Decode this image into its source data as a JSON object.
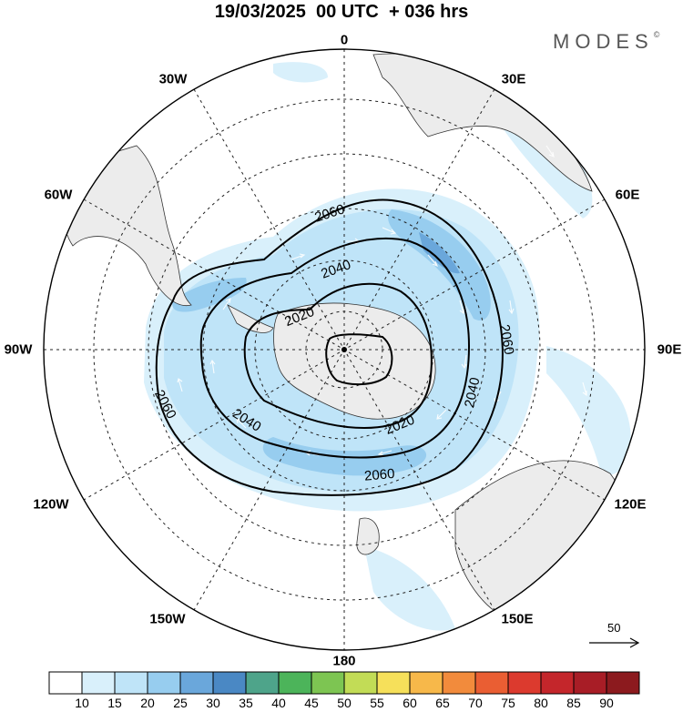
{
  "title": "19/03/2025  00 UTC  + 036 hrs",
  "brand": "MODES",
  "brand_mark": "©",
  "longitude_labels": {
    "lon_0": "0",
    "lon_30e": "30E",
    "lon_60e": "60E",
    "lon_90e": "90E",
    "lon_120e": "120E",
    "lon_150e": "150E",
    "lon_180": "180",
    "lon_150w": "150W",
    "lon_120w": "120W",
    "lon_90w": "90W",
    "lon_60w": "60W",
    "lon_30w": "30W"
  },
  "contour_labels": [
    "2060",
    "2040",
    "2020",
    "2060",
    "2040",
    "2060",
    "2040",
    "2020",
    "2060"
  ],
  "colorbar": {
    "labels": [
      "10",
      "15",
      "20",
      "25",
      "30",
      "35",
      "40",
      "45",
      "50",
      "55",
      "60",
      "65",
      "70",
      "75",
      "80",
      "85",
      "90"
    ],
    "colors": [
      "#ffffff",
      "#d9f0fb",
      "#bfe4f8",
      "#97cdef",
      "#6aa7db",
      "#4a88c4",
      "#4ea48a",
      "#4cb45a",
      "#7dc552",
      "#c2dc56",
      "#f6e05a",
      "#f7b84a",
      "#f28b3c",
      "#ea5e33",
      "#dc3a2e",
      "#c4262b",
      "#a81d26",
      "#8c1a1e"
    ]
  },
  "vector_reference": "50",
  "icons": [
    "arrow-right-icon"
  ]
}
